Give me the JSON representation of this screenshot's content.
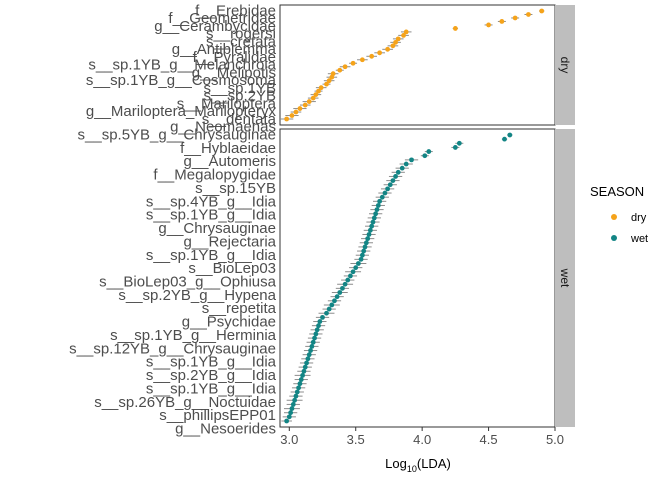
{
  "chart_data": {
    "type": "scatter",
    "xlabel_main": "Log",
    "xlabel_sub": "10",
    "xlabel_tail": "(LDA)",
    "ylabel": "",
    "xlim": [
      2.93,
      5.0
    ],
    "xticks": [
      3.0,
      3.5,
      4.0,
      4.5,
      5.0
    ],
    "xtick_labels": [
      "3.0",
      "3.5",
      "4.0",
      "4.5",
      "5.0"
    ],
    "grid": false,
    "legend_position": "right",
    "legend": {
      "title": "SEASON",
      "items": [
        {
          "label": "dry",
          "color": "#F5A31A"
        },
        {
          "label": "wet",
          "color": "#138585"
        }
      ]
    },
    "panels": [
      {
        "strip": "dry",
        "color": "#F5A31A",
        "values": [
          2.98,
          3.02,
          3.05,
          3.08,
          3.12,
          3.15,
          3.18,
          3.2,
          3.22,
          3.24,
          3.28,
          3.3,
          3.32,
          3.33,
          3.38,
          3.42,
          3.48,
          3.55,
          3.62,
          3.68,
          3.74,
          3.78,
          3.8,
          3.82,
          3.86,
          3.88,
          4.25,
          4.5,
          4.6,
          4.7,
          4.8,
          4.9
        ],
        "errors": [
          0.05,
          0.05,
          0.04,
          0.05,
          0.04,
          0.05,
          0.04,
          0.04,
          0.03,
          0.04,
          0.03,
          0.04,
          0.04,
          0.04,
          0.03,
          0.04,
          0.03,
          0.04,
          0.04,
          0.04,
          0.04,
          0.04,
          0.04,
          0.04,
          0.04,
          0.04,
          0.02,
          0.03,
          0.03,
          0.03,
          0.03,
          0.02
        ],
        "labels": [
          "f__Erebidae",
          "f__Geometridae",
          "g__Cerambycidae",
          "s__rogersi",
          "s__cretata",
          "g__Antiblemma",
          "f__Pyralidae",
          "s__sp.1YB_g__Melanchroia",
          "g__Melipotis",
          "s__sp.1YB_g__Cosmosoma",
          "s__sp.1YB",
          "s__sp.2YB",
          "s__Mariloptera",
          "g__Mariloptera_Marilopteryx",
          "s__dentata",
          "g__Neomaenas"
        ]
      },
      {
        "strip": "wet",
        "color": "#138585",
        "values": [
          2.98,
          3.0,
          3.01,
          3.02,
          3.03,
          3.04,
          3.05,
          3.06,
          3.07,
          3.08,
          3.09,
          3.1,
          3.11,
          3.12,
          3.13,
          3.14,
          3.15,
          3.16,
          3.17,
          3.18,
          3.19,
          3.2,
          3.21,
          3.22,
          3.23,
          3.25,
          3.28,
          3.3,
          3.32,
          3.34,
          3.36,
          3.38,
          3.4,
          3.42,
          3.44,
          3.46,
          3.48,
          3.5,
          3.52,
          3.54,
          3.55,
          3.56,
          3.57,
          3.58,
          3.59,
          3.6,
          3.61,
          3.62,
          3.63,
          3.64,
          3.65,
          3.66,
          3.67,
          3.68,
          3.7,
          3.72,
          3.74,
          3.76,
          3.78,
          3.8,
          3.82,
          3.85,
          3.88,
          3.92,
          4.02,
          4.05,
          4.25,
          4.28,
          4.62,
          4.66
        ],
        "errors": [
          0.04,
          0.05,
          0.05,
          0.06,
          0.05,
          0.06,
          0.05,
          0.05,
          0.05,
          0.05,
          0.05,
          0.06,
          0.05,
          0.05,
          0.05,
          0.05,
          0.05,
          0.05,
          0.05,
          0.05,
          0.05,
          0.05,
          0.05,
          0.05,
          0.05,
          0.05,
          0.06,
          0.05,
          0.06,
          0.05,
          0.05,
          0.06,
          0.05,
          0.06,
          0.05,
          0.05,
          0.06,
          0.05,
          0.06,
          0.05,
          0.05,
          0.05,
          0.05,
          0.05,
          0.05,
          0.05,
          0.05,
          0.05,
          0.05,
          0.05,
          0.05,
          0.05,
          0.05,
          0.05,
          0.05,
          0.05,
          0.05,
          0.05,
          0.05,
          0.05,
          0.05,
          0.05,
          0.05,
          0.05,
          0.03,
          0.03,
          0.03,
          0.03,
          0.02,
          0.02
        ],
        "labels": [
          "s__sp.5YB_g__Chrysauginae",
          "f__Hyblaeidae",
          "g__Automeris",
          "f__Megalopygidae",
          "s__sp.15YB",
          "s__sp.4YB_g__Idia",
          "s__sp.1YB_g__Idia",
          "g__Chrysauginae",
          "g__Rejectaria",
          "s__sp.1YB_g__Idia",
          "s__BioLep03",
          "s__BioLep03_g__Ophiusa",
          "s__sp.2YB_g__Hypena",
          "s__repetita",
          "g__Psychidae",
          "s__sp.1YB_g__Herminia",
          "s__sp.12YB_g__Chrysauginae",
          "s__sp.1YB_g__Idia",
          "s__sp.2YB_g__Idia",
          "s__sp.1YB_g__Idia",
          "s__sp.26YB_g__Noctuidae",
          "s__phillipsEPP01",
          "g__Nesoerides"
        ]
      }
    ]
  }
}
